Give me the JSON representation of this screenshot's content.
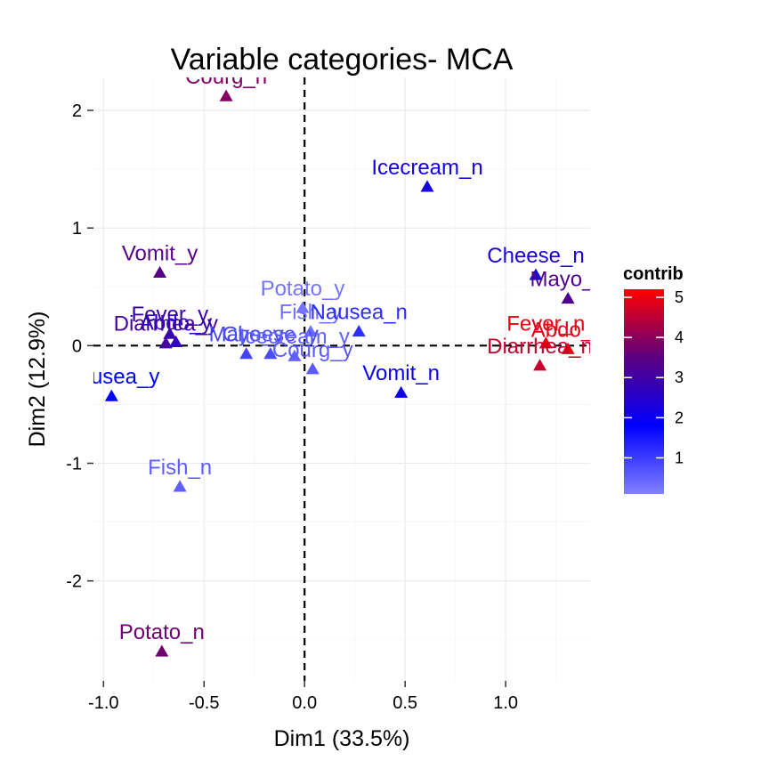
{
  "chart_data": {
    "type": "scatter",
    "title": "Variable categories- MCA",
    "xlabel": "Dim1 (33.5%)",
    "ylabel": "Dim2 (12.9%)",
    "xlim": [
      -1.05,
      1.42
    ],
    "ylim": [
      -2.85,
      2.28
    ],
    "x_ticks": [
      -1.0,
      -0.5,
      0.0,
      0.5,
      1.0
    ],
    "x_tick_labels": [
      "-1.0",
      "-0.5",
      "0.0",
      "0.5",
      "1.0"
    ],
    "y_ticks": [
      -2,
      -1,
      0,
      1,
      2
    ],
    "y_tick_labels": [
      "-2",
      "-1",
      "0",
      "1",
      "2"
    ],
    "grid": true,
    "reference_lines": {
      "x": 0,
      "y": 0,
      "style": "dashed"
    },
    "legend": {
      "title": "contrib",
      "placement": "right",
      "range": [
        0.1,
        5.2
      ],
      "ticks": [
        1,
        2,
        3,
        4,
        5
      ],
      "tick_labels": [
        "1",
        "2",
        "3",
        "4",
        "5"
      ],
      "gradient": [
        "#8080ff",
        "#0000ff",
        "#5b0080",
        "#ff0000"
      ]
    },
    "points": [
      {
        "label": "Courg_n",
        "x": -0.39,
        "y": 2.12,
        "contrib": 3.9
      },
      {
        "label": "Icecream_n",
        "x": 0.61,
        "y": 1.35,
        "contrib": 2.2
      },
      {
        "label": "Vomit_y",
        "x": -0.72,
        "y": 0.62,
        "contrib": 3.4
      },
      {
        "label": "Cheese_n",
        "x": 1.15,
        "y": 0.6,
        "contrib": 2.3
      },
      {
        "label": "Mayo_n",
        "x": 1.31,
        "y": 0.4,
        "contrib": 3.3
      },
      {
        "label": "Fever_y",
        "x": -0.67,
        "y": 0.1,
        "contrib": 2.9
      },
      {
        "label": "Diarrhea_y",
        "x": -0.69,
        "y": 0.02,
        "contrib": 3.1
      },
      {
        "label": "Abdo_y",
        "x": -0.64,
        "y": 0.03,
        "contrib": 2.7
      },
      {
        "label": "Potato_y",
        "x": -0.01,
        "y": 0.32,
        "contrib": 0.25
      },
      {
        "label": "Fish_y",
        "x": 0.03,
        "y": 0.12,
        "contrib": 0.3
      },
      {
        "label": "Nausea_n",
        "x": 0.27,
        "y": 0.12,
        "contrib": 1.2
      },
      {
        "label": "Mayo_y",
        "x": -0.29,
        "y": -0.07,
        "contrib": 0.9
      },
      {
        "label": "Cheese_y",
        "x": -0.17,
        "y": -0.07,
        "contrib": 0.8
      },
      {
        "label": "Icecream_y",
        "x": -0.05,
        "y": -0.09,
        "contrib": 0.5
      },
      {
        "label": "Courg_y",
        "x": 0.04,
        "y": -0.2,
        "contrib": 0.6
      },
      {
        "label": "Diarrhea_n",
        "x": 1.17,
        "y": -0.17,
        "contrib": 4.6
      },
      {
        "label": "Abdo_n",
        "x": 1.31,
        "y": -0.03,
        "contrib": 4.9
      },
      {
        "label": "Fever_n",
        "x": 1.2,
        "y": 0.02,
        "contrib": 5.0
      },
      {
        "label": "Nausea_y",
        "x": -0.96,
        "y": -0.43,
        "contrib": 1.8
      },
      {
        "label": "Vomit_n",
        "x": 0.48,
        "y": -0.4,
        "contrib": 2.0
      },
      {
        "label": "Fish_n",
        "x": -0.62,
        "y": -1.2,
        "contrib": 0.55
      },
      {
        "label": "Potato_n",
        "x": -0.71,
        "y": -2.6,
        "contrib": 3.7
      }
    ]
  }
}
